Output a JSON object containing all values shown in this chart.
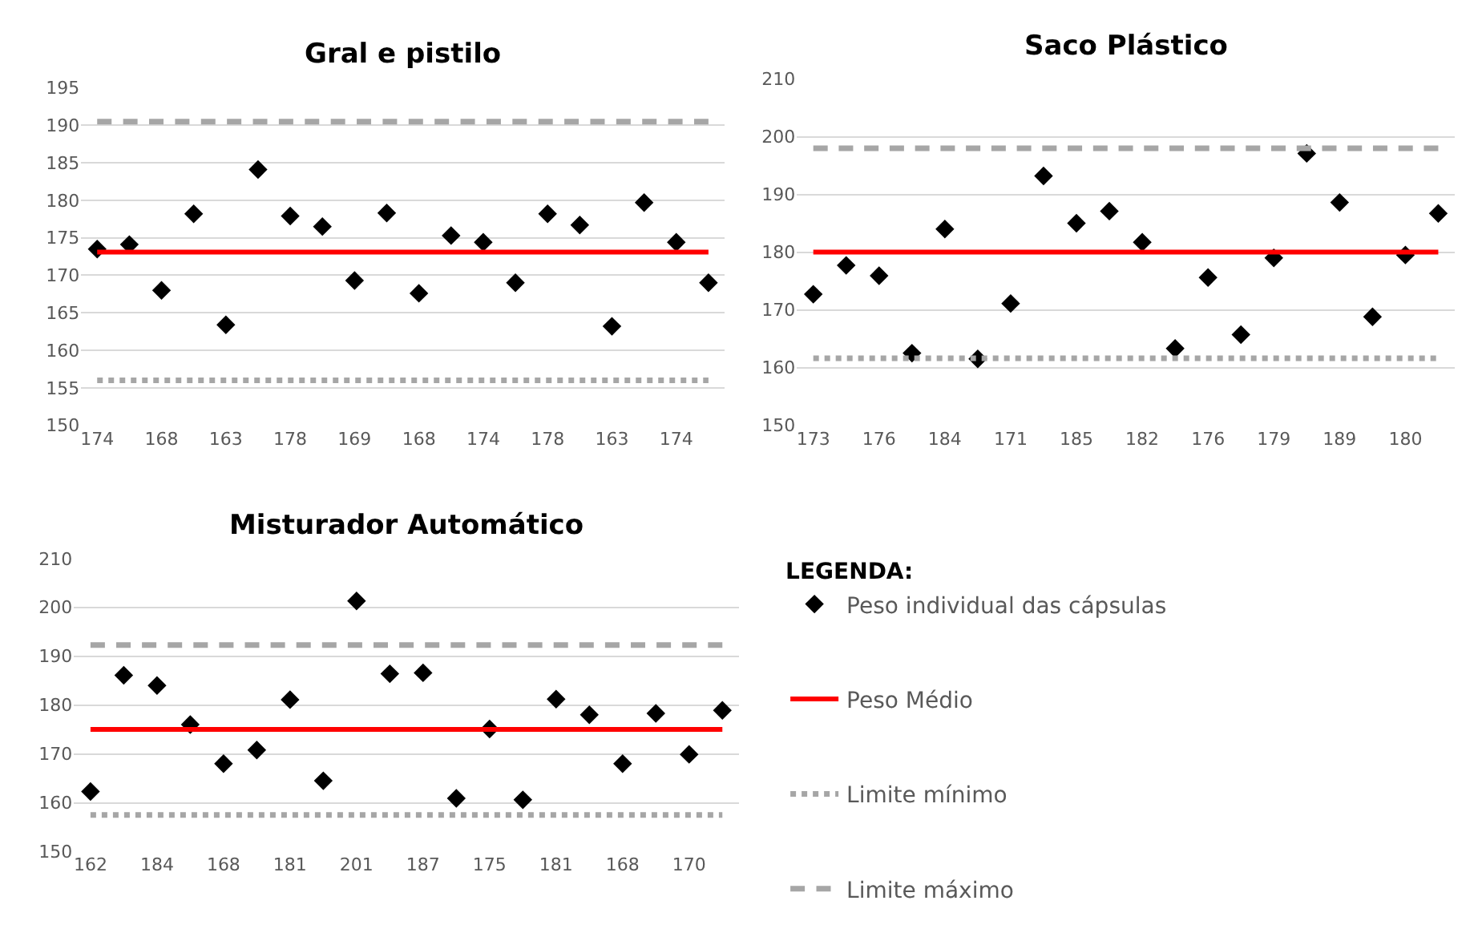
{
  "chart_data": [
    {
      "type": "scatter",
      "title": "Gral e pistilo",
      "categories": [
        "174",
        null,
        "168",
        null,
        "163",
        null,
        "178",
        null,
        "169",
        null,
        "168",
        null,
        "174",
        null,
        "178",
        null,
        "163",
        null,
        "174",
        null
      ],
      "ylim": [
        150,
        195
      ],
      "yticks": [
        150,
        155,
        160,
        165,
        170,
        175,
        180,
        185,
        190,
        195
      ],
      "grid": "y",
      "legend": "bottom right",
      "legend_title": "LEGENDA:",
      "series": [
        {
          "name": "Peso individual das cápsulas",
          "marker": "diamond",
          "color": "#000000",
          "values": [
            173.5,
            174.1,
            168,
            178.2,
            163.4,
            184.1,
            177.9,
            176.5,
            169.3,
            178.3,
            167.6,
            175.3,
            174.4,
            169,
            178.2,
            176.7,
            163.2,
            179.7,
            174.4,
            169
          ]
        },
        {
          "name": "Peso Médio",
          "type": "line",
          "color": "#ff0000",
          "line_style": "solid",
          "values": [
            173.1,
            173.1,
            173.1,
            173.1,
            173.1,
            173.1,
            173.1,
            173.1,
            173.1,
            173.1,
            173.1,
            173.1,
            173.1,
            173.1,
            173.1,
            173.1,
            173.1,
            173.1,
            173.1,
            173.1
          ]
        },
        {
          "name": "Limite mínimo",
          "type": "line",
          "color": "#a6a6a6",
          "line_style": "dotted",
          "values": [
            156,
            156,
            156,
            156,
            156,
            156,
            156,
            156,
            156,
            156,
            156,
            156,
            156,
            156,
            156,
            156,
            156,
            156,
            156,
            156
          ]
        },
        {
          "name": "Limite máximo",
          "type": "line",
          "color": "#a6a6a6",
          "line_style": "dashed",
          "values": [
            190.5,
            190.5,
            190.5,
            190.5,
            190.5,
            190.5,
            190.5,
            190.5,
            190.5,
            190.5,
            190.5,
            190.5,
            190.5,
            190.5,
            190.5,
            190.5,
            190.5,
            190.5,
            190.5,
            190.5
          ]
        }
      ]
    },
    {
      "type": "scatter",
      "title": "Saco Plástico",
      "categories": [
        "173",
        null,
        "176",
        null,
        "184",
        null,
        "171",
        null,
        "185",
        null,
        "182",
        null,
        "176",
        null,
        "179",
        null,
        "189",
        null,
        "180",
        null
      ],
      "ylim": [
        150,
        210
      ],
      "yticks": [
        150,
        160,
        170,
        180,
        190,
        200,
        210
      ],
      "grid": "y",
      "series": [
        {
          "marker": "diamond",
          "color": "#000000",
          "values": [
            172.7,
            177.7,
            175.9,
            162.5,
            184,
            161.5,
            171.1,
            193.2,
            185,
            187.1,
            181.7,
            163.3,
            175.6,
            165.7,
            179,
            197.1,
            188.6,
            168.8,
            179.5,
            186.7
          ]
        },
        {
          "type": "line",
          "color": "#ff0000",
          "line_style": "solid",
          "values": [
            180,
            180,
            180,
            180,
            180,
            180,
            180,
            180,
            180,
            180,
            180,
            180,
            180,
            180,
            180,
            180,
            180,
            180,
            180,
            180
          ]
        },
        {
          "type": "line",
          "color": "#a6a6a6",
          "line_style": "dotted",
          "values": [
            161.6,
            161.6,
            161.6,
            161.6,
            161.6,
            161.6,
            161.6,
            161.6,
            161.6,
            161.6,
            161.6,
            161.6,
            161.6,
            161.6,
            161.6,
            161.6,
            161.6,
            161.6,
            161.6,
            161.6
          ]
        },
        {
          "type": "line",
          "color": "#a6a6a6",
          "line_style": "dashed",
          "values": [
            198,
            198,
            198,
            198,
            198,
            198,
            198,
            198,
            198,
            198,
            198,
            198,
            198,
            198,
            198,
            198,
            198,
            198,
            198,
            198
          ]
        }
      ]
    },
    {
      "type": "scatter",
      "title": "Misturador Automático",
      "categories": [
        "162",
        null,
        "184",
        null,
        "168",
        null,
        "181",
        null,
        "201",
        null,
        "187",
        null,
        "175",
        null,
        "181",
        null,
        "168",
        null,
        "170",
        null
      ],
      "ylim": [
        150,
        210
      ],
      "yticks": [
        150,
        160,
        170,
        180,
        190,
        200,
        210
      ],
      "grid": "y",
      "series": [
        {
          "marker": "diamond",
          "color": "#000000",
          "values": [
            162.3,
            186.1,
            184,
            176,
            168,
            170.8,
            181.1,
            164.5,
            201.3,
            186.4,
            186.6,
            160.9,
            175.1,
            160.6,
            181.2,
            178,
            168,
            178.3,
            169.9,
            178.9
          ]
        },
        {
          "type": "line",
          "color": "#ff0000",
          "line_style": "solid",
          "values": [
            175,
            175,
            175,
            175,
            175,
            175,
            175,
            175,
            175,
            175,
            175,
            175,
            175,
            175,
            175,
            175,
            175,
            175,
            175,
            175
          ]
        },
        {
          "type": "line",
          "color": "#a6a6a6",
          "line_style": "dotted",
          "values": [
            157.5,
            157.5,
            157.5,
            157.5,
            157.5,
            157.5,
            157.5,
            157.5,
            157.5,
            157.5,
            157.5,
            157.5,
            157.5,
            157.5,
            157.5,
            157.5,
            157.5,
            157.5,
            157.5,
            157.5
          ]
        },
        {
          "type": "line",
          "color": "#a6a6a6",
          "line_style": "dashed",
          "values": [
            192.3,
            192.3,
            192.3,
            192.3,
            192.3,
            192.3,
            192.3,
            192.3,
            192.3,
            192.3,
            192.3,
            192.3,
            192.3,
            192.3,
            192.3,
            192.3,
            192.3,
            192.3,
            192.3,
            192.3
          ]
        }
      ]
    }
  ]
}
